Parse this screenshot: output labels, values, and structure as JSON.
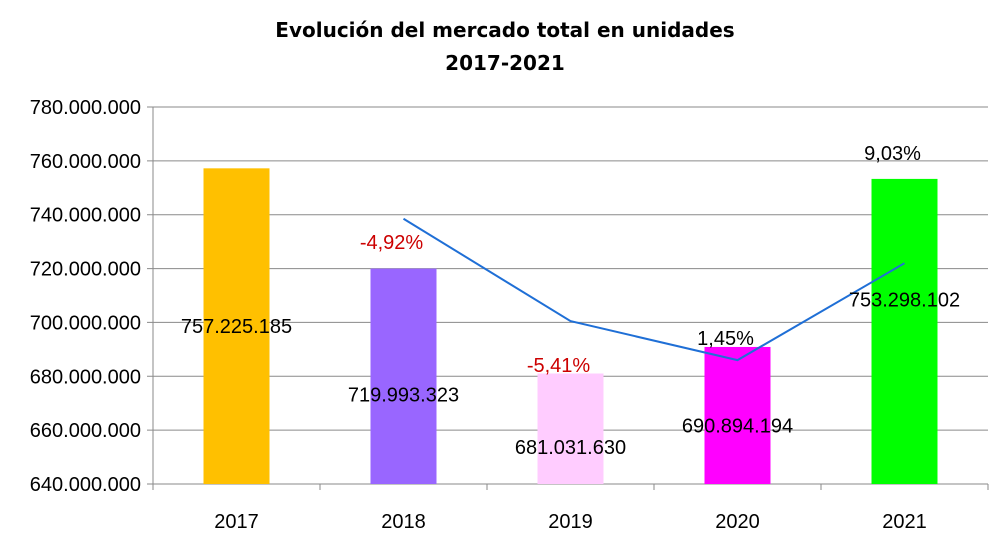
{
  "chart_data": {
    "type": "bar",
    "title": "Evolución del mercado total en unidades",
    "subtitle": "2017-2021",
    "xlabel": "",
    "ylabel": "",
    "categories": [
      "2017",
      "2018",
      "2019",
      "2020",
      "2021"
    ],
    "values": [
      757225185,
      719993323,
      681031630,
      690894194,
      753298102
    ],
    "value_labels": [
      "757.225.185",
      "719.993.323",
      "681.031.630",
      "690.894.194",
      "753.298.102"
    ],
    "bar_colors": [
      "#ffc000",
      "#9966ff",
      "#ffccff",
      "#ff00ff",
      "#00ff00"
    ],
    "ylim": [
      640000000,
      780000000
    ],
    "yticks": [
      640000000,
      660000000,
      680000000,
      700000000,
      720000000,
      740000000,
      760000000,
      780000000
    ],
    "ytick_labels": [
      "640.000.000",
      "660.000.000",
      "680.000.000",
      "700.000.000",
      "720.000.000",
      "740.000.000",
      "760.000.000",
      "780.000.000"
    ],
    "grid": true,
    "legend": "none",
    "change_line": {
      "color": "#1f6fd6",
      "categories": [
        "2018",
        "2019",
        "2020",
        "2021"
      ],
      "percent_labels": [
        "-4,92%",
        "-5,41%",
        "1,45%",
        "9,03%"
      ],
      "percent_colors": [
        "#cc0000",
        "#cc0000",
        "#000000",
        "#000000"
      ]
    }
  }
}
